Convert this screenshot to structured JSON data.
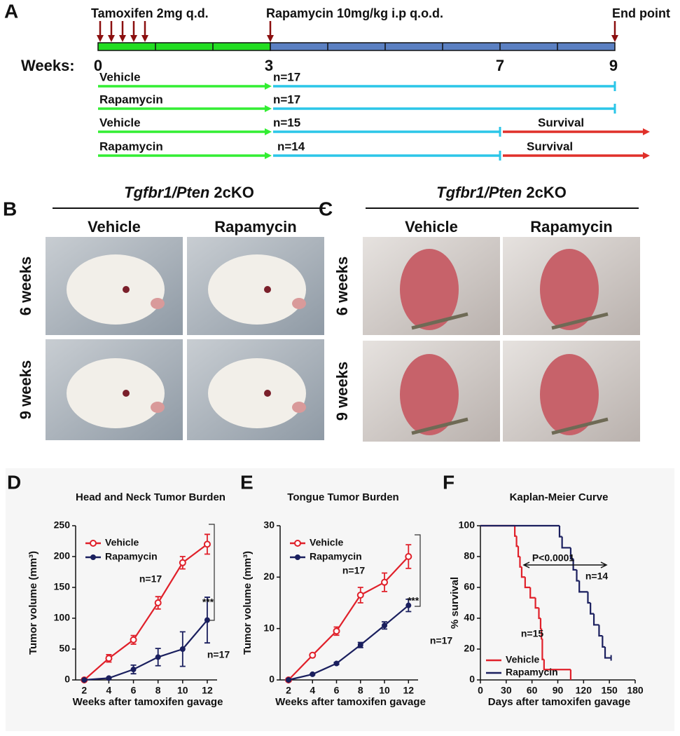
{
  "panel_labels": [
    "A",
    "B",
    "C",
    "D",
    "E",
    "F"
  ],
  "timeline": {
    "tamoxifen": "Tamoxifen 2mg q.d.",
    "rapamycin": "Rapamycin 10mg/kg i.p q.o.d.",
    "end": "End point",
    "weeks_label": "Weeks:",
    "week_marks": [
      "0",
      "3",
      "7",
      "9"
    ],
    "groups": [
      {
        "name": "Vehicle",
        "n": "n=17"
      },
      {
        "name": "Rapamycin",
        "n": "n=17"
      },
      {
        "name": "Vehicle",
        "n": "n=15",
        "survival": "Survival"
      },
      {
        "name": "Rapamycin",
        "n": "n=14",
        "survival": "Survival"
      }
    ]
  },
  "photos": [
    {
      "gene": "Tgfbr1/Pten",
      "suffix": "2cKO",
      "columns": [
        "Vehicle",
        "Rapamycin"
      ],
      "rows": [
        "6 weeks",
        "9 weeks"
      ]
    },
    {
      "gene": "Tgfbr1/Pten",
      "suffix": "2cKO",
      "columns": [
        "Vehicle",
        "Rapamycin"
      ],
      "rows": [
        "6 weeks",
        "9 weeks"
      ]
    }
  ],
  "chart_data": [
    {
      "type": "line",
      "title": "Head and Neck Tumor Burden",
      "xlabel": "Weeks after tamoxifen gavage",
      "ylabel": "Tumor volume (mm³)",
      "x": [
        2,
        4,
        6,
        8,
        10,
        12
      ],
      "xlim": [
        1.3,
        12.8
      ],
      "xticks": [
        2,
        4,
        6,
        8,
        10,
        12
      ],
      "ylim": [
        0,
        250
      ],
      "yticks": [
        0,
        50,
        100,
        150,
        200,
        250
      ],
      "legend": "upper left",
      "series": [
        {
          "name": "Vehicle",
          "color": "#e0202a",
          "marker": "open",
          "values": [
            0,
            35,
            65,
            125,
            190,
            220
          ],
          "errors": [
            0,
            6,
            7,
            10,
            10,
            16
          ]
        },
        {
          "name": "Rapamycin",
          "color": "#1a1f5e",
          "marker": "filled",
          "values": [
            0,
            3,
            17,
            37,
            50,
            97
          ],
          "errors": [
            0,
            1,
            7,
            14,
            28,
            37
          ]
        }
      ],
      "annotations": [
        {
          "text": "n=17",
          "color": "#e0202a"
        },
        {
          "text": "n=17",
          "color": "#1a1f5e"
        },
        {
          "text": "***",
          "color": "#222222"
        }
      ]
    },
    {
      "type": "line",
      "title": "Tongue Tumor Burden",
      "xlabel": "Weeks after tamoxifen gavage",
      "ylabel": "Tumor volume (mm³)",
      "x": [
        2,
        4,
        6,
        8,
        10,
        12
      ],
      "xlim": [
        1.3,
        12.8
      ],
      "xticks": [
        2,
        4,
        6,
        8,
        10,
        12
      ],
      "ylim": [
        0,
        30
      ],
      "yticks": [
        0,
        10,
        20,
        30
      ],
      "legend": "upper left",
      "series": [
        {
          "name": "Vehicle",
          "color": "#e0202a",
          "marker": "open",
          "values": [
            0,
            4.8,
            9.5,
            16.5,
            19,
            24
          ],
          "errors": [
            0,
            0.3,
            0.8,
            1.5,
            1.8,
            2.3
          ]
        },
        {
          "name": "Rapamycin",
          "color": "#1a1f5e",
          "marker": "filled",
          "values": [
            0,
            1.1,
            3.2,
            6.8,
            10.6,
            14.5
          ],
          "errors": [
            0,
            0.1,
            0.2,
            0.5,
            0.7,
            1.2
          ]
        }
      ],
      "annotations": [
        {
          "text": "n=17",
          "color": "#e0202a"
        },
        {
          "text": "n=17",
          "color": "#1a1f5e"
        },
        {
          "text": "***",
          "color": "#222222"
        }
      ]
    },
    {
      "type": "step",
      "title": "Kaplan-Meier Curve",
      "xlabel": "Days after tamoxifen gavage",
      "ylabel": "% survival",
      "xlim": [
        0,
        180
      ],
      "xticks": [
        0,
        30,
        60,
        90,
        120,
        150,
        180
      ],
      "ylim": [
        0,
        100
      ],
      "yticks": [
        0,
        20,
        40,
        60,
        80,
        100
      ],
      "legend": "lower left",
      "series": [
        {
          "name": "Vehicle",
          "color": "#e0202a",
          "x": [
            0,
            40,
            42,
            44,
            46,
            48,
            52,
            58,
            64,
            68,
            70,
            71,
            72,
            74,
            105
          ],
          "values": [
            100,
            93.3,
            86.7,
            80,
            73.3,
            66.7,
            60,
            53.3,
            46.7,
            40,
            33.3,
            26.7,
            13.3,
            6.7,
            0
          ]
        },
        {
          "name": "Rapamycin",
          "color": "#1a1f5e",
          "x": [
            0,
            92,
            95,
            105,
            108,
            112,
            115,
            125,
            128,
            132,
            138,
            142,
            145,
            152
          ],
          "values": [
            100,
            92.9,
            85.7,
            78.6,
            71.4,
            64.3,
            57.1,
            50,
            42.9,
            35.7,
            28.6,
            21.4,
            14.3,
            14.3
          ]
        }
      ],
      "annotations": [
        {
          "text": "P<0.0001",
          "color": "#222222"
        },
        {
          "text": "n=14",
          "color": "#1a1f5e"
        },
        {
          "text": "n=15",
          "color": "#e0202a"
        }
      ]
    }
  ]
}
